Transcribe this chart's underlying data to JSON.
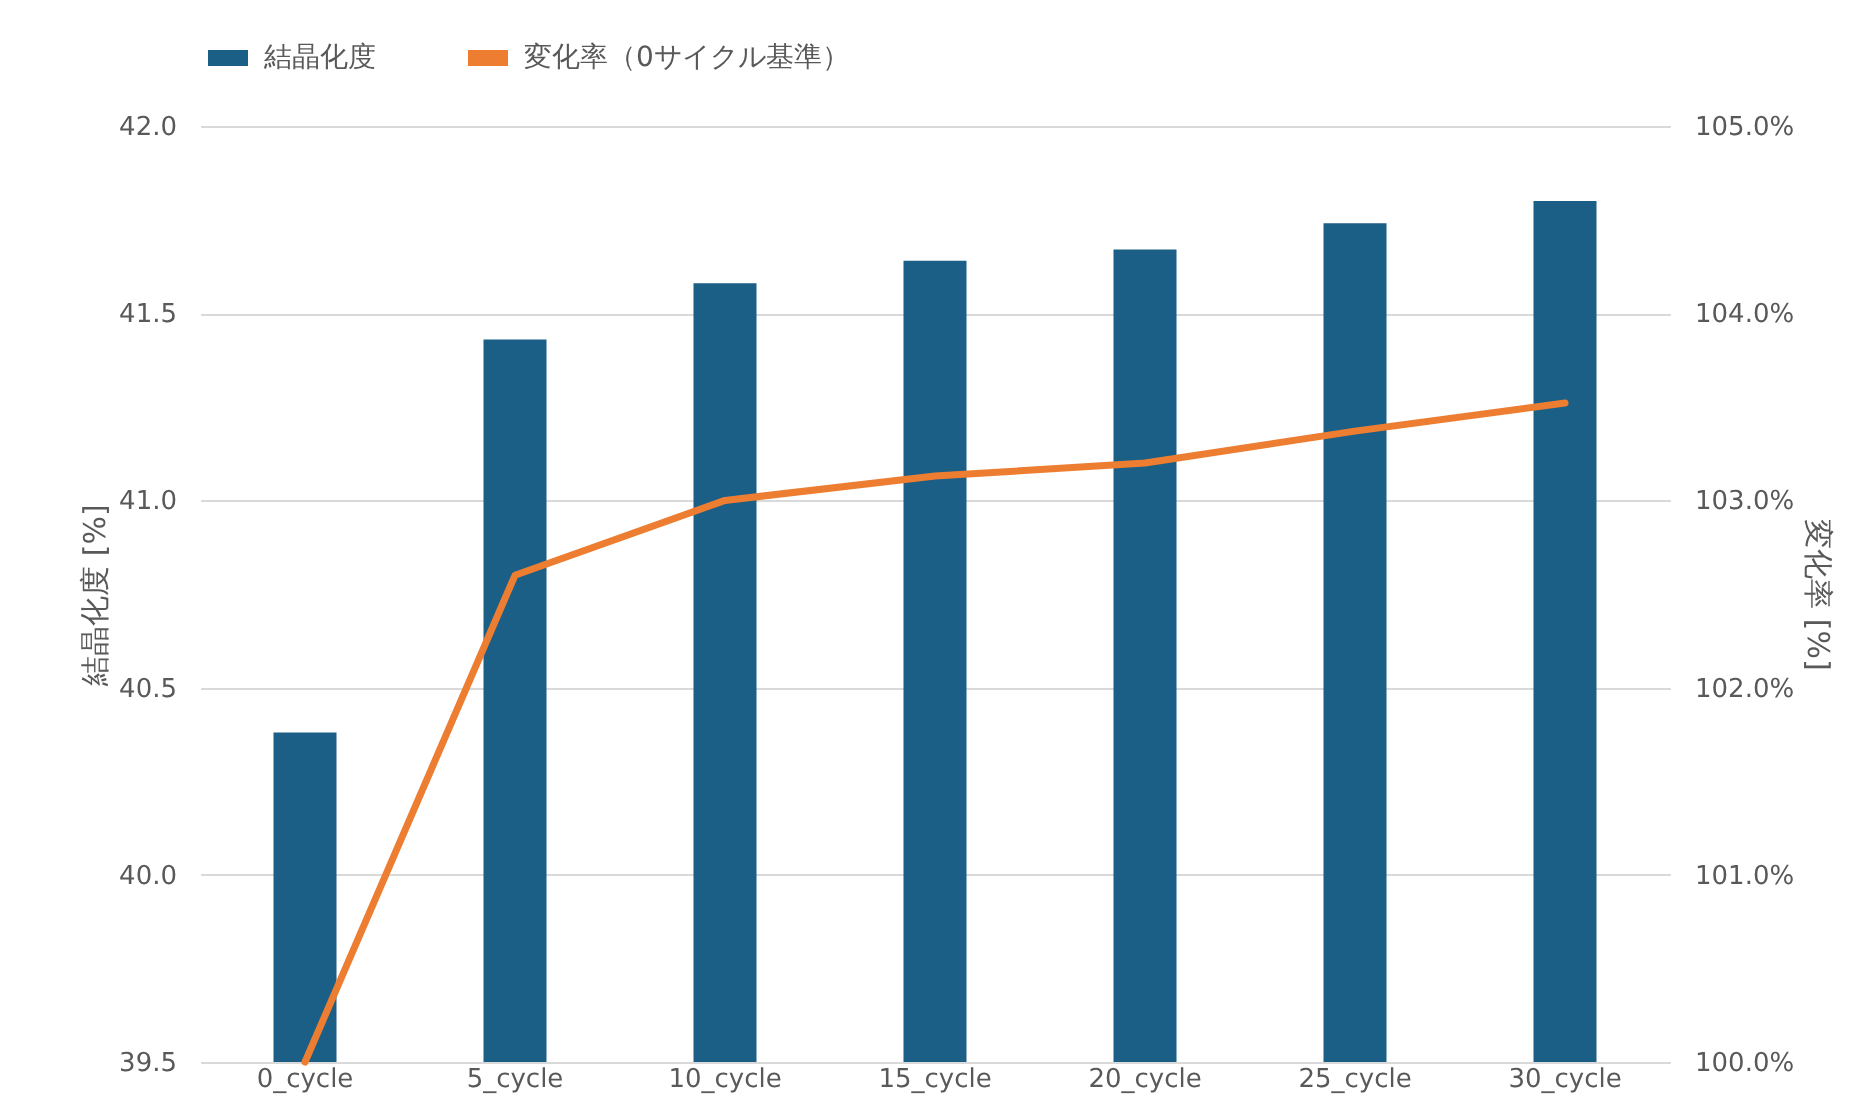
{
  "chart_data": {
    "type": "bar",
    "ylabel": "結晶化度 [%]",
    "y2label": "変化率 [%]",
    "categories": [
      "0_cycle",
      "5_cycle",
      "10_cycle",
      "15_cycle",
      "20_cycle",
      "25_cycle",
      "30_cycle"
    ],
    "series": [
      {
        "name": "結晶化度",
        "color": "#1b5e86",
        "values": [
          40.38,
          41.43,
          41.58,
          41.64,
          41.67,
          41.74,
          41.8
        ]
      },
      {
        "name": "変化率（0サイクル基準）",
        "type": "line",
        "axis": "y2",
        "color": "#ed7d31",
        "values": [
          100.0,
          102.6,
          103.0,
          103.13,
          103.2,
          103.37,
          103.52
        ]
      }
    ],
    "ylim": [
      39.5,
      42.0
    ],
    "yticks": [
      {
        "value": 39.5,
        "label": "39.5"
      },
      {
        "value": 40.0,
        "label": "40.0"
      },
      {
        "value": 40.5,
        "label": "40.5"
      },
      {
        "value": 41.0,
        "label": "41.0"
      },
      {
        "value": 41.5,
        "label": "41.5"
      },
      {
        "value": 42.0,
        "label": "42.0"
      }
    ],
    "y2lim": [
      100,
      105
    ],
    "y2ticks": [
      {
        "value": 100,
        "label": "100.0%"
      },
      {
        "value": 101,
        "label": "101.0%"
      },
      {
        "value": 102,
        "label": "102.0%"
      },
      {
        "value": 103,
        "label": "103.0%"
      },
      {
        "value": 104,
        "label": "104.0%"
      },
      {
        "value": 105,
        "label": "105.0%"
      }
    ],
    "grid": "y",
    "legend": "top",
    "marker": "none",
    "line_style": "solid"
  }
}
